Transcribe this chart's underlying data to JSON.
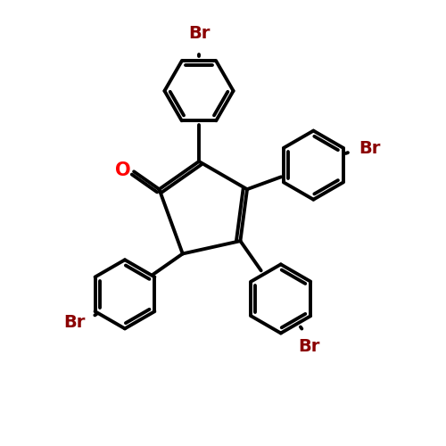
{
  "background_color": "#ffffff",
  "bond_color": "#000000",
  "bond_width": 2.8,
  "atom_colors": {
    "O": "#ff0000",
    "Br": "#8b0000"
  },
  "font_size_o": 15,
  "font_size_br": 14
}
